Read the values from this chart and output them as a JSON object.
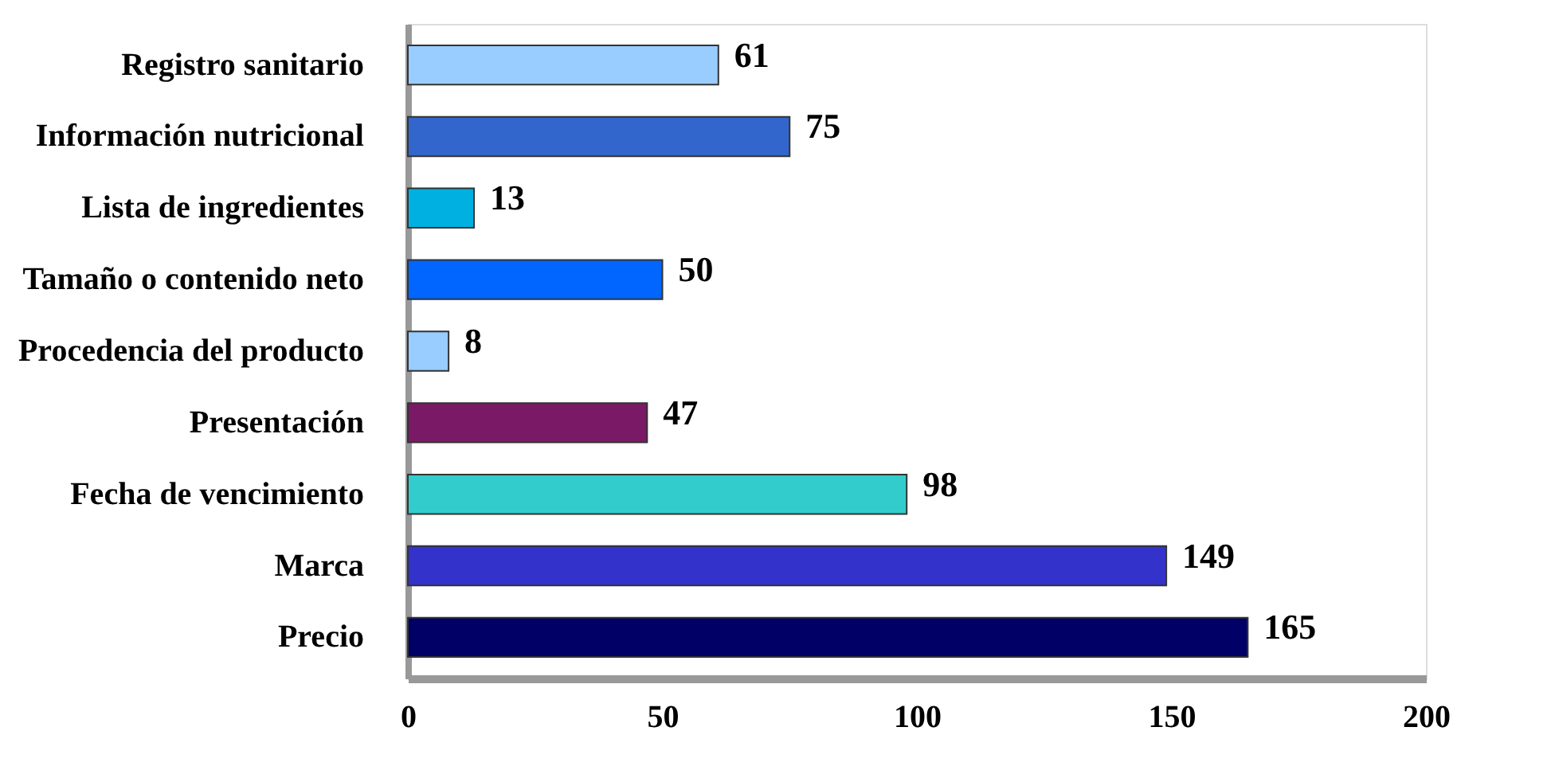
{
  "chart_data": {
    "type": "bar",
    "orientation": "horizontal",
    "categories": [
      "Registro sanitario",
      "Información nutricional",
      "Lista de ingredientes",
      "Tamaño o contenido neto",
      "Procedencia del producto",
      "Presentación",
      "Fecha de vencimiento",
      "Marca",
      "Precio"
    ],
    "values": [
      61,
      75,
      13,
      50,
      8,
      47,
      98,
      149,
      165
    ],
    "colors": [
      "#99ccff",
      "#3366cc",
      "#00b0e0",
      "#0066ff",
      "#99ccff",
      "#7a1a66",
      "#33cccc",
      "#3333cc",
      "#000066"
    ],
    "xlim": [
      0,
      200
    ],
    "xticks": [
      0,
      50,
      100,
      150,
      200
    ],
    "grid": false,
    "data_labels": true
  }
}
